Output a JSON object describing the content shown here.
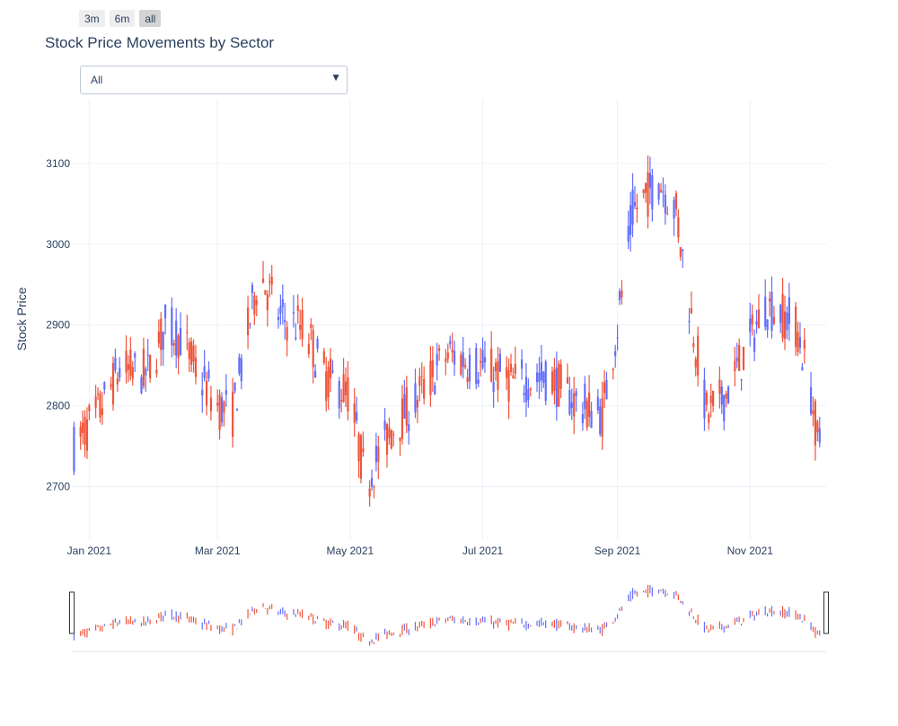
{
  "range_selector": {
    "buttons": [
      {
        "label": "3m",
        "active": false
      },
      {
        "label": "6m",
        "active": false
      },
      {
        "label": "all",
        "active": true
      }
    ]
  },
  "dropdown": {
    "selected": "All"
  },
  "chart_data": {
    "type": "candlestick",
    "title": "Stock Price Movements by Sector",
    "xlabel": "",
    "ylabel": "Stock Price",
    "x_range": [
      "2020-12-24",
      "2021-12-06"
    ],
    "ylim": [
      2635,
      3180
    ],
    "x_ticks": [
      {
        "date": "2021-01-01",
        "label": "Jan 2021"
      },
      {
        "date": "2021-03-01",
        "label": "Mar 2021"
      },
      {
        "date": "2021-05-01",
        "label": "May 2021"
      },
      {
        "date": "2021-07-01",
        "label": "Jul 2021"
      },
      {
        "date": "2021-09-01",
        "label": "Sep 2021"
      },
      {
        "date": "2021-11-01",
        "label": "Nov 2021"
      }
    ],
    "y_ticks": [
      2700,
      2800,
      2900,
      3000,
      3100
    ],
    "grid": true,
    "increasing_color": "#636efa",
    "decreasing_color": "#ef553b",
    "range_slider": true,
    "trend_anchors": [
      [
        "2020-12-24",
        2745
      ],
      [
        "2021-01-05",
        2790
      ],
      [
        "2021-01-15",
        2845
      ],
      [
        "2021-01-28",
        2840
      ],
      [
        "2021-02-05",
        2900
      ],
      [
        "2021-02-12",
        2885
      ],
      [
        "2021-02-20",
        2840
      ],
      [
        "2021-03-01",
        2800
      ],
      [
        "2021-03-08",
        2790
      ],
      [
        "2021-03-20",
        2965
      ],
      [
        "2021-03-30",
        2910
      ],
      [
        "2021-04-10",
        2895
      ],
      [
        "2021-04-20",
        2835
      ],
      [
        "2021-05-01",
        2815
      ],
      [
        "2021-05-08",
        2705
      ],
      [
        "2021-05-20",
        2770
      ],
      [
        "2021-06-01",
        2810
      ],
      [
        "2021-06-15",
        2865
      ],
      [
        "2021-06-25",
        2855
      ],
      [
        "2021-07-15",
        2830
      ],
      [
        "2021-08-01",
        2835
      ],
      [
        "2021-08-15",
        2800
      ],
      [
        "2021-08-25",
        2790
      ],
      [
        "2021-09-01",
        2900
      ],
      [
        "2021-09-08",
        3040
      ],
      [
        "2021-09-20",
        3080
      ],
      [
        "2021-09-28",
        3040
      ],
      [
        "2021-10-05",
        2910
      ],
      [
        "2021-10-12",
        2790
      ],
      [
        "2021-10-20",
        2810
      ],
      [
        "2021-11-01",
        2880
      ],
      [
        "2021-11-08",
        2925
      ],
      [
        "2021-11-15",
        2915
      ],
      [
        "2021-11-22",
        2900
      ],
      [
        "2021-11-28",
        2835
      ],
      [
        "2021-12-02",
        2760
      ],
      [
        "2021-12-06",
        2750
      ]
    ]
  }
}
